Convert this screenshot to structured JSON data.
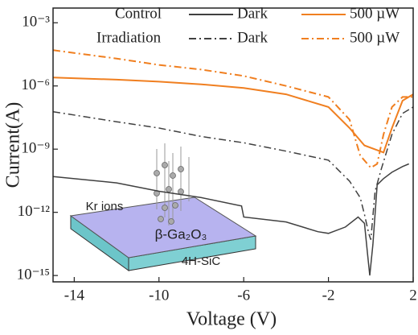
{
  "chart_data": {
    "type": "line",
    "x_label": "Voltage (V)",
    "y_label": "Current(A)",
    "ylog": true,
    "xlim": [
      -15,
      2
    ],
    "ylim": [
      5e-16,
      0.005
    ],
    "xticks": [
      -14,
      -10,
      -6,
      -2,
      2
    ],
    "yticks": [
      {
        "value": 1e-15,
        "label": "10⁻¹⁵"
      },
      {
        "value": 1e-12,
        "label": "10⁻¹²"
      },
      {
        "value": 1e-09,
        "label": "10⁻⁹"
      },
      {
        "value": 1e-06,
        "label": "10⁻⁶"
      },
      {
        "value": 0.001,
        "label": "10⁻³"
      }
    ],
    "legend_rows": [
      "Control",
      "Irradiation"
    ],
    "series": [
      {
        "name": "Dark",
        "color": "#404040",
        "dash": "solid",
        "x": [
          -15,
          -12,
          -10,
          -8,
          -6.1,
          -6,
          -4,
          -2.5,
          -2,
          -1.2,
          -0.6,
          -0.3,
          -0.15,
          -0.05,
          0.1,
          0.3,
          0.6,
          1,
          1.5,
          1.8
        ],
        "values": [
          5e-11,
          2.5e-11,
          1e-11,
          5e-12,
          2e-12,
          6e-13,
          3.5e-13,
          1.2e-13,
          1e-13,
          2e-13,
          6e-13,
          3e-13,
          1e-14,
          1e-15,
          3e-14,
          2e-11,
          4e-11,
          8e-11,
          1.5e-10,
          2e-10
        ]
      },
      {
        "name": "500 µW",
        "color": "#f07f20",
        "dash": "solid",
        "x": [
          -15,
          -12,
          -10,
          -8,
          -6,
          -4,
          -2,
          -1,
          -0.3,
          0.3,
          0.6,
          1,
          1.5,
          2
        ],
        "values": [
          2.5e-06,
          2e-06,
          1.6e-06,
          1.2e-06,
          8e-07,
          4e-07,
          1e-07,
          1e-08,
          1.5e-09,
          9e-10,
          7e-10,
          1e-08,
          2e-07,
          4e-07
        ]
      },
      {
        "name": "Dark",
        "color": "#404040",
        "dash": "dashdot",
        "x": [
          -15,
          -12,
          -10,
          -8,
          -6,
          -4,
          -2,
          -1,
          -0.5,
          -0.3,
          -0.1,
          0,
          0.2,
          0.5,
          1,
          1.5,
          2
        ],
        "values": [
          6e-08,
          2e-08,
          1e-08,
          4e-09,
          2e-09,
          8e-10,
          3e-10,
          3e-11,
          5e-12,
          8e-13,
          1e-13,
          5e-14,
          1e-11,
          1.2e-10,
          5e-09,
          5e-08,
          1e-07
        ]
      },
      {
        "name": "500 µW",
        "color": "#f07f20",
        "dash": "dashdot",
        "x": [
          -15,
          -12,
          -10,
          -8,
          -6,
          -4,
          -2,
          -1,
          -0.5,
          0,
          0.3,
          0.6,
          1,
          1.5,
          2
        ],
        "values": [
          5e-05,
          2e-05,
          1e-05,
          6e-06,
          3e-06,
          1e-06,
          3e-07,
          2.5e-08,
          5e-10,
          1.3e-10,
          2e-10,
          5e-09,
          1e-07,
          3e-07,
          3e-07
        ]
      }
    ],
    "annotations": [
      "Kr ions",
      "β-Ga₂O₃",
      "4H-SiC"
    ]
  }
}
